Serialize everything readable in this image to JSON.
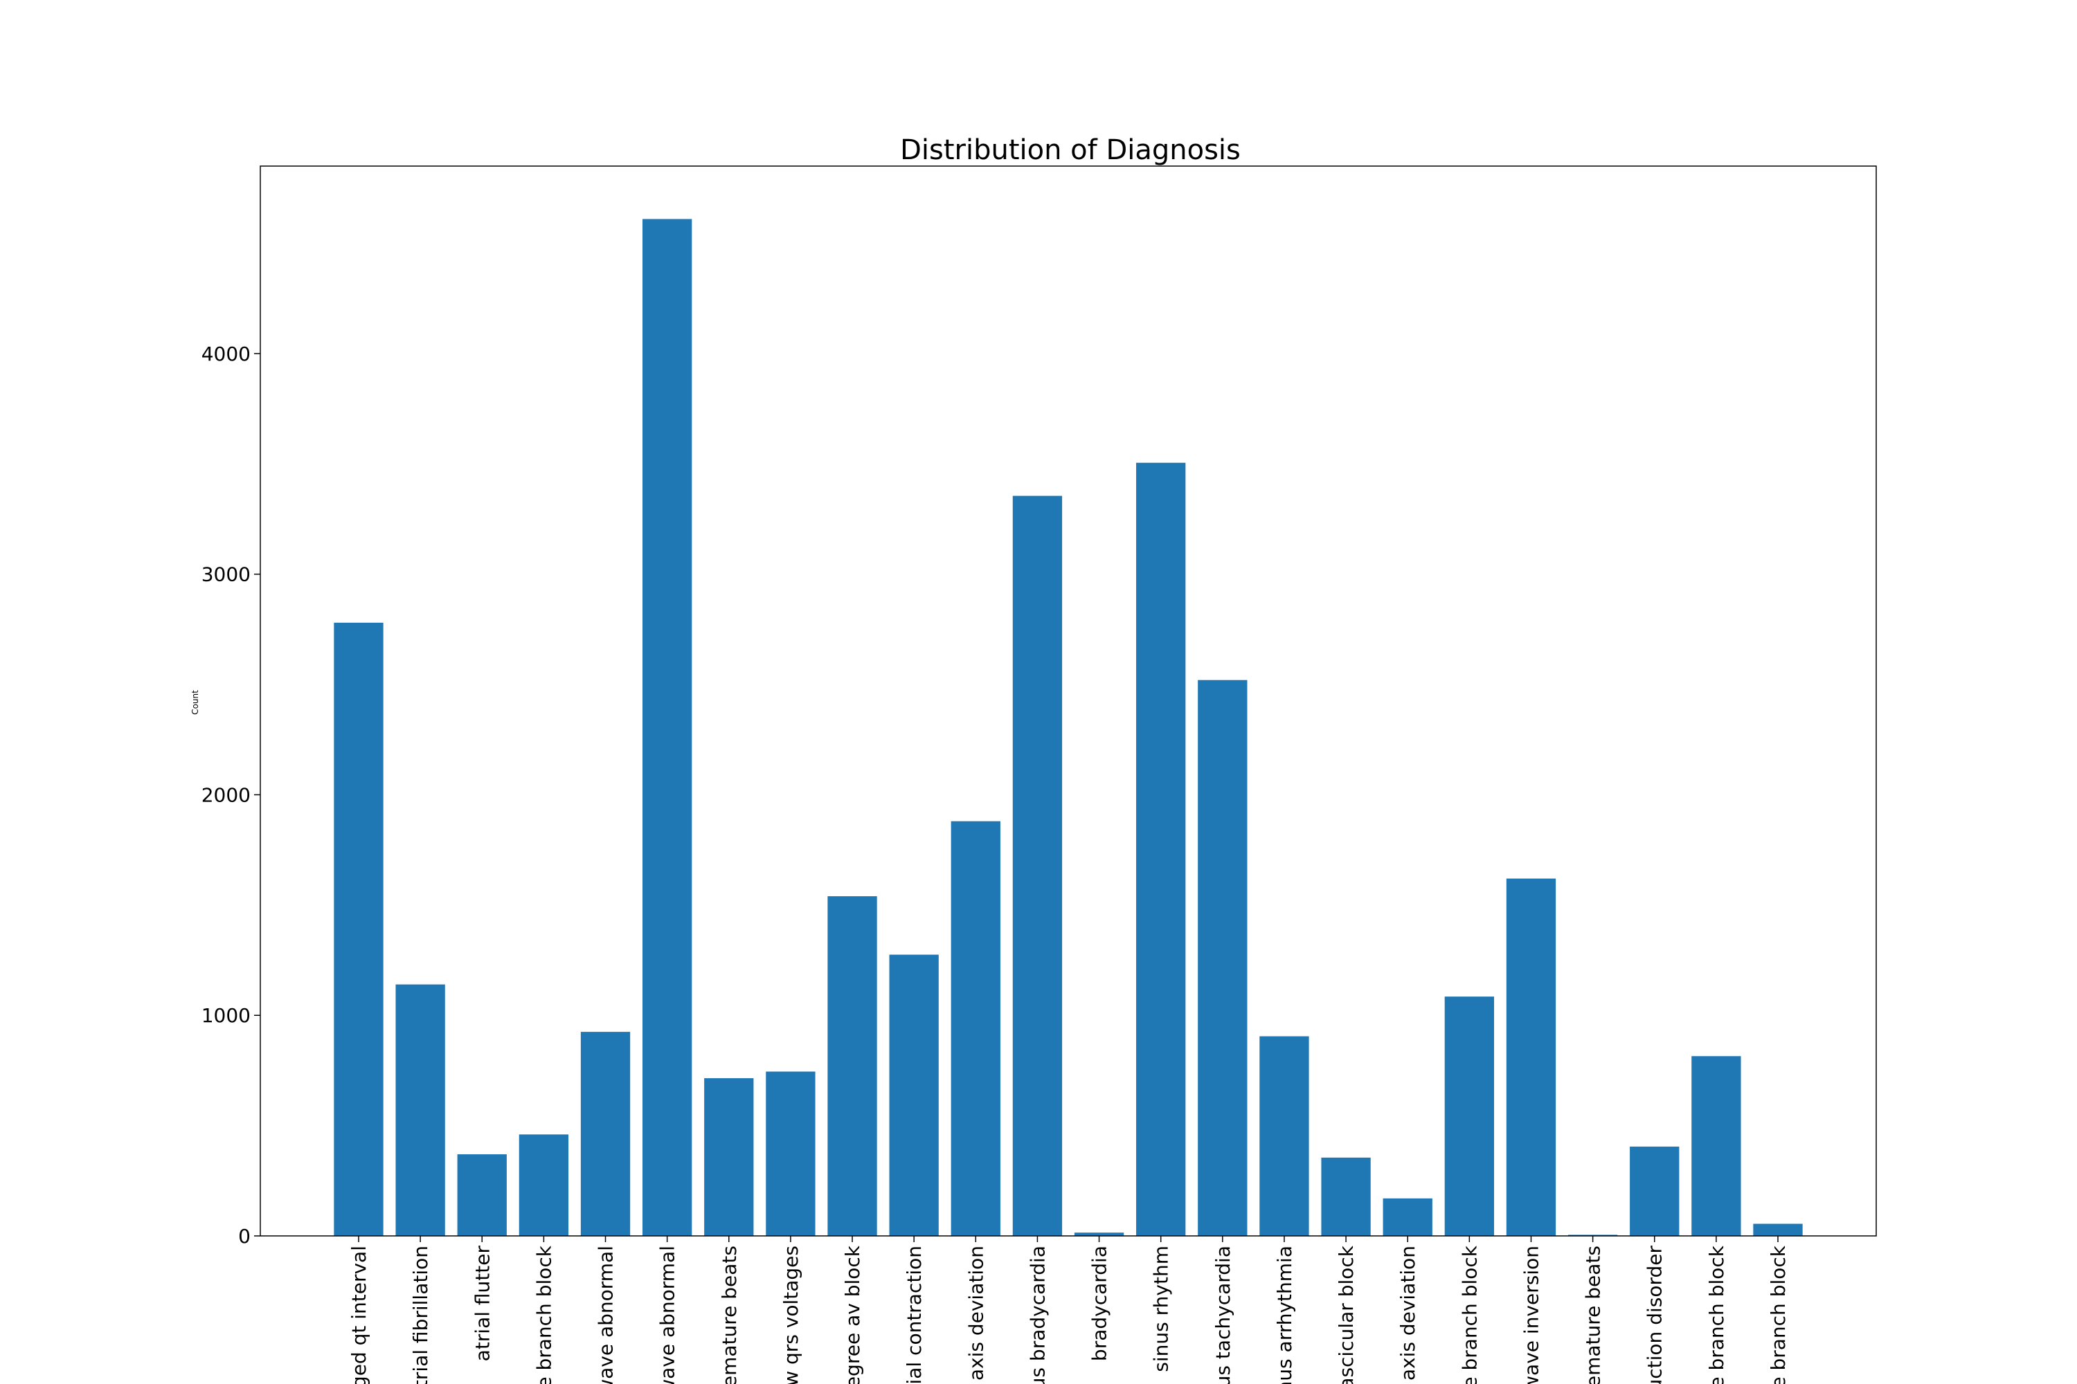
{
  "chart_data": {
    "type": "bar",
    "title": "Distribution of Diagnosis",
    "xlabel": "",
    "ylabel": "Count",
    "ylim": [
      0,
      4850
    ],
    "yticks": [
      0,
      1000,
      2000,
      3000,
      4000
    ],
    "ytick_labels": [
      "0",
      "1000",
      "2000",
      "3000",
      "4000"
    ],
    "grid": false,
    "bar_color": "#1f77b4",
    "categories": [
      "ged qt interval",
      "atrial fibrillation",
      "atrial flutter",
      "le branch block",
      "wave abnormal",
      "wave abnormal",
      "remature beats",
      "ow qrs voltages",
      "legree av block",
      "rial contraction",
      "t axis deviation",
      "us bradycardia",
      "bradycardia",
      "sinus rhythm",
      "nus tachycardia",
      "nus arrhythmia",
      "fascicular block",
      "t axis deviation",
      "le branch block",
      "wave inversion",
      "remature beats",
      "uction disorder",
      "le branch block",
      "le branch block"
    ],
    "values": [
      2780,
      1140,
      370,
      460,
      925,
      4610,
      715,
      745,
      1540,
      1275,
      1880,
      3355,
      15,
      3505,
      2520,
      905,
      355,
      170,
      1085,
      1620,
      5,
      405,
      815,
      55
    ]
  }
}
